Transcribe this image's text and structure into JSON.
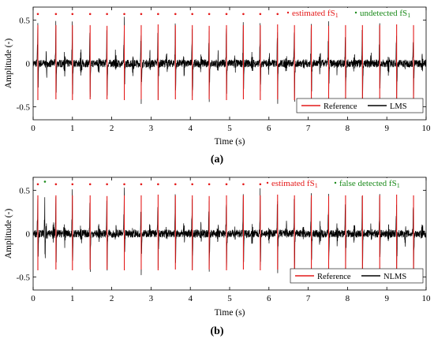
{
  "chart_data": [
    {
      "type": "line",
      "caption": "(a)",
      "xlabel": "Time (s)",
      "ylabel": "Amplitude (-)",
      "xlim": [
        0,
        10
      ],
      "ylim": [
        -0.65,
        0.65
      ],
      "xticks": [
        0,
        1,
        2,
        3,
        4,
        5,
        6,
        7,
        8,
        9,
        10
      ],
      "yticks": [
        -0.5,
        0,
        0.5
      ],
      "ytick_labels": [
        "-0.5",
        "0",
        "0.5"
      ],
      "grid": false,
      "legend": {
        "placement": "bottom-right",
        "entries": [
          {
            "label": "Reference",
            "color": "#e41a1a"
          },
          {
            "label": "LMS",
            "color": "#000000"
          }
        ]
      },
      "annotation_legend": {
        "placement": "top-right",
        "entries": [
          {
            "label": "estimated fS",
            "sub": "1",
            "color": "#e41a1a"
          },
          {
            "label": "undetected fS",
            "sub": "1",
            "color": "#1a8a1a"
          }
        ]
      },
      "beats": [
        {
          "t": 0.12,
          "peak": 0.52,
          "trough": -0.47,
          "ref": true
        },
        {
          "t": 0.58,
          "peak": 0.52,
          "trough": -0.46,
          "ref": true
        },
        {
          "t": 1.0,
          "peak": 0.52,
          "trough": -0.47,
          "ref": true
        },
        {
          "t": 1.45,
          "peak": 0.52,
          "trough": -0.46,
          "ref": true
        },
        {
          "t": 1.88,
          "peak": 0.51,
          "trough": -0.46,
          "ref": true
        },
        {
          "t": 2.32,
          "peak": 0.52,
          "trough": -0.47,
          "ref": true
        },
        {
          "t": 2.75,
          "peak": 0.52,
          "trough": -0.46,
          "ref": true
        },
        {
          "t": 3.18,
          "peak": 0.53,
          "trough": -0.47,
          "ref": true
        },
        {
          "t": 3.62,
          "peak": 0.52,
          "trough": -0.46,
          "ref": true
        },
        {
          "t": 4.05,
          "peak": 0.52,
          "trough": -0.47,
          "ref": true
        },
        {
          "t": 4.48,
          "peak": 0.51,
          "trough": -0.46,
          "ref": true
        },
        {
          "t": 4.92,
          "peak": 0.52,
          "trough": -0.47,
          "ref": true
        },
        {
          "t": 5.35,
          "peak": 0.52,
          "trough": -0.46,
          "ref": true
        },
        {
          "t": 5.78,
          "peak": 0.52,
          "trough": -0.47,
          "ref": true
        },
        {
          "t": 6.22,
          "peak": 0.53,
          "trough": -0.46,
          "ref": true
        },
        {
          "t": 6.65,
          "peak": 0.52,
          "trough": -0.47,
          "ref": true
        },
        {
          "t": 7.08,
          "peak": 0.52,
          "trough": -0.46,
          "ref": true
        },
        {
          "t": 7.52,
          "peak": 0.51,
          "trough": -0.47,
          "ref": true
        },
        {
          "t": 7.95,
          "peak": 0.52,
          "trough": -0.46,
          "ref": true
        },
        {
          "t": 8.38,
          "peak": 0.52,
          "trough": -0.47,
          "ref": true
        },
        {
          "t": 8.82,
          "peak": 0.52,
          "trough": -0.46,
          "ref": true
        },
        {
          "t": 9.25,
          "peak": 0.53,
          "trough": -0.47,
          "ref": true
        },
        {
          "t": 9.68,
          "peak": 0.52,
          "trough": -0.46,
          "ref": true
        }
      ],
      "estimated_markers": [
        {
          "t": 0.12,
          "y": 0.57
        },
        {
          "t": 0.58,
          "y": 0.57
        },
        {
          "t": 1.0,
          "y": 0.57
        },
        {
          "t": 1.45,
          "y": 0.57
        },
        {
          "t": 1.88,
          "y": 0.57
        },
        {
          "t": 2.32,
          "y": 0.57
        },
        {
          "t": 2.75,
          "y": 0.57
        },
        {
          "t": 3.18,
          "y": 0.57
        },
        {
          "t": 3.62,
          "y": 0.57
        },
        {
          "t": 4.05,
          "y": 0.57
        },
        {
          "t": 4.48,
          "y": 0.57
        },
        {
          "t": 4.92,
          "y": 0.57
        },
        {
          "t": 5.35,
          "y": 0.57
        },
        {
          "t": 5.78,
          "y": 0.57
        },
        {
          "t": 6.22,
          "y": 0.57
        },
        {
          "t": 6.65,
          "y": 0.57
        },
        {
          "t": 7.08,
          "y": 0.57
        },
        {
          "t": 7.52,
          "y": 0.57
        },
        {
          "t": 7.95,
          "y": 0.57
        },
        {
          "t": 8.38,
          "y": 0.57
        },
        {
          "t": 8.82,
          "y": 0.57
        },
        {
          "t": 9.25,
          "y": 0.57
        },
        {
          "t": 9.68,
          "y": 0.57
        }
      ],
      "other_markers": []
    },
    {
      "type": "line",
      "caption": "(b)",
      "xlabel": "Time (s)",
      "ylabel": "Amplitude (-)",
      "xlim": [
        0,
        10
      ],
      "ylim": [
        -0.65,
        0.65
      ],
      "xticks": [
        0,
        1,
        2,
        3,
        4,
        5,
        6,
        7,
        8,
        9,
        10
      ],
      "yticks": [
        -0.5,
        0,
        0.5
      ],
      "ytick_labels": [
        "-0.5",
        "0",
        "0.5"
      ],
      "grid": false,
      "legend": {
        "placement": "bottom-right",
        "entries": [
          {
            "label": "Reference",
            "color": "#e41a1a"
          },
          {
            "label": "NLMS",
            "color": "#000000"
          }
        ]
      },
      "annotation_legend": {
        "placement": "top-right",
        "entries": [
          {
            "label": "estimated fS",
            "sub": "1",
            "color": "#e41a1a"
          },
          {
            "label": "false detected fS",
            "sub": "1",
            "color": "#1a8a1a"
          }
        ]
      },
      "beats": [
        {
          "t": 0.12,
          "peak": 0.52,
          "trough": -0.47,
          "ref": true
        },
        {
          "t": 0.3,
          "peak": 0.48,
          "trough": -0.4,
          "ref": false
        },
        {
          "t": 0.58,
          "peak": 0.52,
          "trough": -0.46,
          "ref": true
        },
        {
          "t": 1.0,
          "peak": 0.52,
          "trough": -0.47,
          "ref": true
        },
        {
          "t": 1.45,
          "peak": 0.52,
          "trough": -0.46,
          "ref": true
        },
        {
          "t": 1.88,
          "peak": 0.51,
          "trough": -0.46,
          "ref": true
        },
        {
          "t": 2.32,
          "peak": 0.52,
          "trough": -0.47,
          "ref": true
        },
        {
          "t": 2.75,
          "peak": 0.52,
          "trough": -0.46,
          "ref": true
        },
        {
          "t": 3.18,
          "peak": 0.53,
          "trough": -0.47,
          "ref": true
        },
        {
          "t": 3.62,
          "peak": 0.52,
          "trough": -0.46,
          "ref": true
        },
        {
          "t": 4.05,
          "peak": 0.52,
          "trough": -0.47,
          "ref": true
        },
        {
          "t": 4.48,
          "peak": 0.51,
          "trough": -0.46,
          "ref": true
        },
        {
          "t": 4.92,
          "peak": 0.52,
          "trough": -0.47,
          "ref": true
        },
        {
          "t": 5.35,
          "peak": 0.52,
          "trough": -0.46,
          "ref": true
        },
        {
          "t": 5.78,
          "peak": 0.52,
          "trough": -0.47,
          "ref": true
        },
        {
          "t": 6.22,
          "peak": 0.53,
          "trough": -0.46,
          "ref": true
        },
        {
          "t": 6.65,
          "peak": 0.52,
          "trough": -0.47,
          "ref": true
        },
        {
          "t": 7.08,
          "peak": 0.52,
          "trough": -0.46,
          "ref": true
        },
        {
          "t": 7.52,
          "peak": 0.51,
          "trough": -0.47,
          "ref": true
        },
        {
          "t": 7.95,
          "peak": 0.52,
          "trough": -0.46,
          "ref": true
        },
        {
          "t": 8.38,
          "peak": 0.52,
          "trough": -0.47,
          "ref": true
        },
        {
          "t": 8.82,
          "peak": 0.52,
          "trough": -0.46,
          "ref": true
        },
        {
          "t": 9.25,
          "peak": 0.53,
          "trough": -0.47,
          "ref": true
        },
        {
          "t": 9.68,
          "peak": 0.52,
          "trough": -0.46,
          "ref": true
        }
      ],
      "estimated_markers": [
        {
          "t": 0.12,
          "y": 0.57
        },
        {
          "t": 0.58,
          "y": 0.57
        },
        {
          "t": 1.0,
          "y": 0.57
        },
        {
          "t": 1.45,
          "y": 0.57
        },
        {
          "t": 1.88,
          "y": 0.57
        },
        {
          "t": 2.32,
          "y": 0.57
        },
        {
          "t": 2.75,
          "y": 0.57
        },
        {
          "t": 3.18,
          "y": 0.57
        },
        {
          "t": 3.62,
          "y": 0.57
        },
        {
          "t": 4.05,
          "y": 0.57
        },
        {
          "t": 4.48,
          "y": 0.57
        },
        {
          "t": 4.92,
          "y": 0.57
        },
        {
          "t": 5.35,
          "y": 0.57
        },
        {
          "t": 5.78,
          "y": 0.57
        },
        {
          "t": 6.22,
          "y": 0.57
        },
        {
          "t": 6.65,
          "y": 0.57
        },
        {
          "t": 7.08,
          "y": 0.57
        },
        {
          "t": 7.52,
          "y": 0.57
        },
        {
          "t": 7.95,
          "y": 0.57
        },
        {
          "t": 8.38,
          "y": 0.57
        },
        {
          "t": 8.82,
          "y": 0.57
        },
        {
          "t": 9.25,
          "y": 0.57
        },
        {
          "t": 9.68,
          "y": 0.57
        }
      ],
      "other_markers": [
        {
          "t": 0.3,
          "y": 0.6
        }
      ]
    }
  ]
}
